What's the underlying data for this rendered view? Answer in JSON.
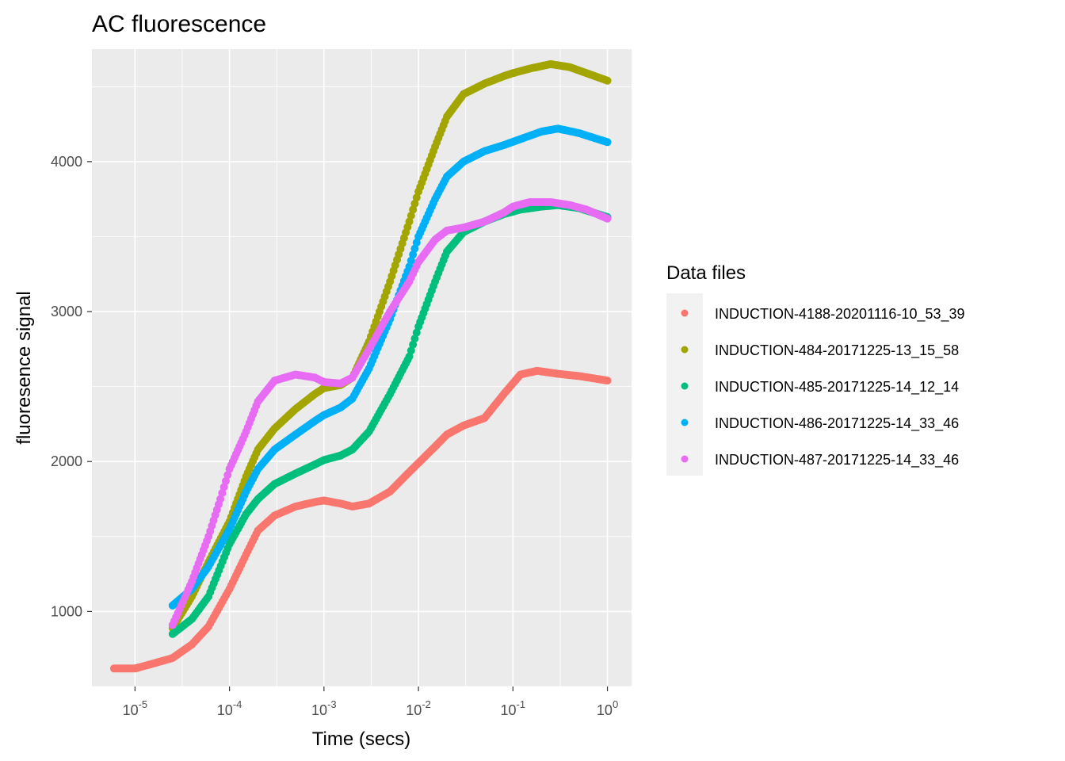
{
  "chart_data": {
    "type": "scatter",
    "title": "AC fluorescence",
    "xlabel": "Time (secs)",
    "ylabel": "fluoresence signal",
    "x_scale": "log10",
    "xlim": [
      3.5e-06,
      1.8
    ],
    "ylim": [
      500,
      4750
    ],
    "x_ticks": [
      {
        "value": 1e-05,
        "base": "10",
        "exp": "-5"
      },
      {
        "value": 0.0001,
        "base": "10",
        "exp": "-4"
      },
      {
        "value": 0.001,
        "base": "10",
        "exp": "-3"
      },
      {
        "value": 0.01,
        "base": "10",
        "exp": "-2"
      },
      {
        "value": 0.1,
        "base": "10",
        "exp": "-1"
      },
      {
        "value": 1,
        "base": "10",
        "exp": "0"
      }
    ],
    "y_ticks": [
      {
        "value": 1000,
        "label": "1000"
      },
      {
        "value": 2000,
        "label": "2000"
      },
      {
        "value": 3000,
        "label": "3000"
      },
      {
        "value": 4000,
        "label": "4000"
      }
    ],
    "grid": true,
    "legend": {
      "title": "Data files",
      "position": "right"
    },
    "series": [
      {
        "name": "INDUCTION-4188-20201116-10_53_39",
        "color": "#F8766D",
        "points": [
          [
            6e-06,
            620
          ],
          [
            1e-05,
            620
          ],
          [
            1.5e-05,
            650
          ],
          [
            2.5e-05,
            690
          ],
          [
            4e-05,
            780
          ],
          [
            6e-05,
            900
          ],
          [
            0.0001,
            1150
          ],
          [
            0.00015,
            1380
          ],
          [
            0.0002,
            1540
          ],
          [
            0.0003,
            1640
          ],
          [
            0.0005,
            1700
          ],
          [
            0.0008,
            1730
          ],
          [
            0.001,
            1740
          ],
          [
            0.0015,
            1720
          ],
          [
            0.002,
            1700
          ],
          [
            0.003,
            1720
          ],
          [
            0.005,
            1800
          ],
          [
            0.008,
            1930
          ],
          [
            0.01,
            1990
          ],
          [
            0.015,
            2100
          ],
          [
            0.02,
            2180
          ],
          [
            0.03,
            2240
          ],
          [
            0.05,
            2290
          ],
          [
            0.08,
            2450
          ],
          [
            0.12,
            2580
          ],
          [
            0.18,
            2605
          ],
          [
            0.3,
            2585
          ],
          [
            0.5,
            2570
          ],
          [
            1,
            2540
          ]
        ]
      },
      {
        "name": "INDUCTION-484-20171225-13_15_58",
        "color": "#A3A500",
        "points": [
          [
            2.5e-05,
            890
          ],
          [
            4e-05,
            1100
          ],
          [
            6e-05,
            1330
          ],
          [
            0.0001,
            1600
          ],
          [
            0.00015,
            1900
          ],
          [
            0.0002,
            2080
          ],
          [
            0.0003,
            2220
          ],
          [
            0.0005,
            2350
          ],
          [
            0.0008,
            2450
          ],
          [
            0.001,
            2490
          ],
          [
            0.0015,
            2510
          ],
          [
            0.002,
            2560
          ],
          [
            0.003,
            2800
          ],
          [
            0.005,
            3200
          ],
          [
            0.008,
            3600
          ],
          [
            0.01,
            3800
          ],
          [
            0.015,
            4100
          ],
          [
            0.02,
            4300
          ],
          [
            0.03,
            4450
          ],
          [
            0.05,
            4520
          ],
          [
            0.08,
            4570
          ],
          [
            0.1,
            4590
          ],
          [
            0.15,
            4620
          ],
          [
            0.25,
            4650
          ],
          [
            0.4,
            4630
          ],
          [
            0.6,
            4590
          ],
          [
            1,
            4540
          ]
        ]
      },
      {
        "name": "INDUCTION-485-20171225-14_12_14",
        "color": "#00BF7D",
        "points": [
          [
            2.5e-05,
            850
          ],
          [
            4e-05,
            950
          ],
          [
            6e-05,
            1100
          ],
          [
            0.0001,
            1450
          ],
          [
            0.00015,
            1650
          ],
          [
            0.0002,
            1750
          ],
          [
            0.0003,
            1850
          ],
          [
            0.0005,
            1920
          ],
          [
            0.0008,
            1980
          ],
          [
            0.001,
            2010
          ],
          [
            0.0015,
            2040
          ],
          [
            0.002,
            2080
          ],
          [
            0.003,
            2200
          ],
          [
            0.005,
            2450
          ],
          [
            0.008,
            2700
          ],
          [
            0.01,
            2900
          ],
          [
            0.015,
            3200
          ],
          [
            0.02,
            3400
          ],
          [
            0.03,
            3530
          ],
          [
            0.05,
            3600
          ],
          [
            0.08,
            3650
          ],
          [
            0.12,
            3680
          ],
          [
            0.2,
            3700
          ],
          [
            0.3,
            3710
          ],
          [
            0.5,
            3690
          ],
          [
            1,
            3630
          ]
        ]
      },
      {
        "name": "INDUCTION-486-20171225-14_33_46",
        "color": "#00B0F6",
        "points": [
          [
            2.5e-05,
            1040
          ],
          [
            4e-05,
            1150
          ],
          [
            6e-05,
            1300
          ],
          [
            0.0001,
            1550
          ],
          [
            0.00015,
            1800
          ],
          [
            0.0002,
            1950
          ],
          [
            0.0003,
            2080
          ],
          [
            0.0005,
            2180
          ],
          [
            0.0008,
            2270
          ],
          [
            0.001,
            2310
          ],
          [
            0.0015,
            2360
          ],
          [
            0.002,
            2420
          ],
          [
            0.003,
            2620
          ],
          [
            0.005,
            2950
          ],
          [
            0.008,
            3300
          ],
          [
            0.01,
            3500
          ],
          [
            0.015,
            3750
          ],
          [
            0.02,
            3900
          ],
          [
            0.03,
            4000
          ],
          [
            0.05,
            4070
          ],
          [
            0.08,
            4110
          ],
          [
            0.12,
            4150
          ],
          [
            0.2,
            4200
          ],
          [
            0.3,
            4220
          ],
          [
            0.5,
            4190
          ],
          [
            1,
            4130
          ]
        ]
      },
      {
        "name": "INDUCTION-487-20171225-14_33_46",
        "color": "#E76BF3",
        "points": [
          [
            2.5e-05,
            910
          ],
          [
            4e-05,
            1200
          ],
          [
            6e-05,
            1500
          ],
          [
            8e-05,
            1750
          ],
          [
            0.0001,
            1950
          ],
          [
            0.00015,
            2200
          ],
          [
            0.0002,
            2400
          ],
          [
            0.0003,
            2540
          ],
          [
            0.0005,
            2580
          ],
          [
            0.0008,
            2560
          ],
          [
            0.001,
            2530
          ],
          [
            0.0015,
            2520
          ],
          [
            0.002,
            2560
          ],
          [
            0.003,
            2750
          ],
          [
            0.005,
            3000
          ],
          [
            0.008,
            3200
          ],
          [
            0.01,
            3330
          ],
          [
            0.015,
            3480
          ],
          [
            0.02,
            3540
          ],
          [
            0.03,
            3560
          ],
          [
            0.05,
            3600
          ],
          [
            0.08,
            3660
          ],
          [
            0.1,
            3700
          ],
          [
            0.15,
            3730
          ],
          [
            0.25,
            3730
          ],
          [
            0.4,
            3710
          ],
          [
            0.6,
            3680
          ],
          [
            1,
            3620
          ]
        ]
      }
    ]
  }
}
